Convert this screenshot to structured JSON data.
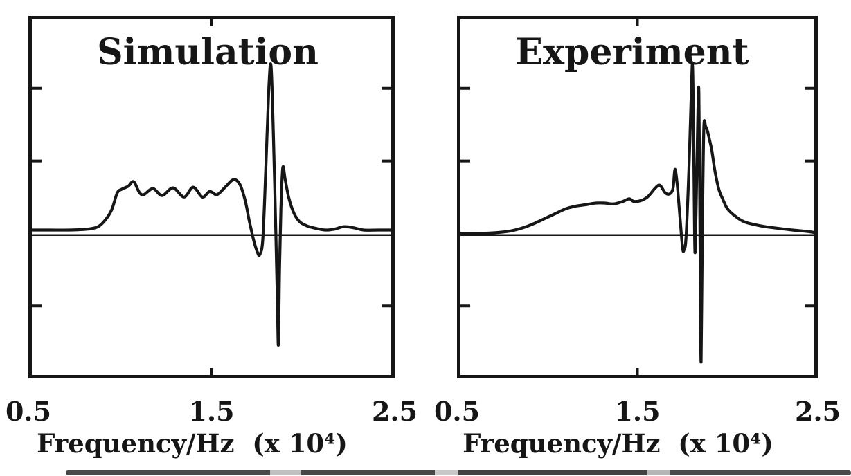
{
  "figure": {
    "background_color": "#ffffff",
    "ink_color": "#161616"
  },
  "chart_data": [
    {
      "type": "line",
      "title": "Simulation",
      "xlabel": "Frequency/Hz  (x 10⁴)",
      "ylabel": "",
      "xlim": [
        0.5,
        2.5
      ],
      "ylim": [
        -0.85,
        1.3
      ],
      "xtick_values": [
        0.5,
        1.5,
        2.5
      ],
      "xtick_labels": [
        "0.5",
        "1.5",
        "2.5"
      ],
      "ytick_values_unlabeled": [
        0.87,
        0.44,
        -0.42
      ],
      "zero_line_y": 0,
      "grid": false,
      "legend": "none",
      "y_units": "relative amplitude (normalized, tallest peak = 1)",
      "series": [
        {
          "name": "simulation-spectrum",
          "points": [
            [
              0.5,
              0.03
            ],
            [
              0.62,
              0.03
            ],
            [
              0.72,
              0.03
            ],
            [
              0.82,
              0.035
            ],
            [
              0.88,
              0.05
            ],
            [
              0.92,
              0.09
            ],
            [
              0.955,
              0.15
            ],
            [
              0.985,
              0.25
            ],
            [
              1.01,
              0.272
            ],
            [
              1.045,
              0.29
            ],
            [
              1.075,
              0.317
            ],
            [
              1.105,
              0.255
            ],
            [
              1.13,
              0.24
            ],
            [
              1.18,
              0.276
            ],
            [
              1.23,
              0.235
            ],
            [
              1.29,
              0.28
            ],
            [
              1.35,
              0.226
            ],
            [
              1.4,
              0.284
            ],
            [
              1.45,
              0.226
            ],
            [
              1.49,
              0.259
            ],
            [
              1.53,
              0.24
            ],
            [
              1.575,
              0.285
            ],
            [
              1.62,
              0.329
            ],
            [
              1.655,
              0.3
            ],
            [
              1.685,
              0.2
            ],
            [
              1.705,
              0.09
            ],
            [
              1.73,
              -0.03
            ],
            [
              1.75,
              -0.1
            ],
            [
              1.763,
              -0.115
            ],
            [
              1.78,
              -0.02
            ],
            [
              1.797,
              0.42
            ],
            [
              1.813,
              0.88
            ],
            [
              1.825,
              1.0
            ],
            [
              1.838,
              0.58
            ],
            [
              1.851,
              0.02
            ],
            [
              1.859,
              -0.38
            ],
            [
              1.865,
              -0.65
            ],
            [
              1.871,
              -0.22
            ],
            [
              1.879,
              0.16
            ],
            [
              1.889,
              0.4
            ],
            [
              1.902,
              0.33
            ],
            [
              1.922,
              0.22
            ],
            [
              1.95,
              0.13
            ],
            [
              1.98,
              0.08
            ],
            [
              2.02,
              0.055
            ],
            [
              2.07,
              0.04
            ],
            [
              2.12,
              0.03
            ],
            [
              2.17,
              0.035
            ],
            [
              2.22,
              0.05
            ],
            [
              2.27,
              0.045
            ],
            [
              2.33,
              0.03
            ],
            [
              2.41,
              0.03
            ],
            [
              2.5,
              0.03
            ]
          ]
        }
      ]
    },
    {
      "type": "line",
      "title": "Experiment",
      "xlabel": "Frequency/Hz  (x 10⁴)",
      "ylabel": "",
      "xlim": [
        0.5,
        2.5
      ],
      "ylim": [
        -0.85,
        1.3
      ],
      "xtick_values": [
        0.5,
        1.5,
        2.5
      ],
      "xtick_labels": [
        "0.5",
        "1.5",
        "2.5"
      ],
      "ytick_values_unlabeled": [
        0.87,
        0.44,
        -0.42
      ],
      "zero_line_y": 0,
      "grid": false,
      "legend": "none",
      "y_units": "relative amplitude (normalized, tallest peak = 1)",
      "series": [
        {
          "name": "experiment-spectrum",
          "points": [
            [
              0.5,
              0.01
            ],
            [
              0.62,
              0.01
            ],
            [
              0.72,
              0.015
            ],
            [
              0.8,
              0.025
            ],
            [
              0.87,
              0.045
            ],
            [
              0.93,
              0.07
            ],
            [
              0.99,
              0.1
            ],
            [
              1.05,
              0.13
            ],
            [
              1.1,
              0.155
            ],
            [
              1.15,
              0.17
            ],
            [
              1.21,
              0.18
            ],
            [
              1.27,
              0.19
            ],
            [
              1.32,
              0.19
            ],
            [
              1.37,
              0.185
            ],
            [
              1.42,
              0.2
            ],
            [
              1.455,
              0.215
            ],
            [
              1.48,
              0.2
            ],
            [
              1.52,
              0.205
            ],
            [
              1.56,
              0.23
            ],
            [
              1.6,
              0.28
            ],
            [
              1.625,
              0.295
            ],
            [
              1.655,
              0.25
            ],
            [
              1.68,
              0.245
            ],
            [
              1.698,
              0.28
            ],
            [
              1.708,
              0.39
            ],
            [
              1.72,
              0.31
            ],
            [
              1.735,
              0.12
            ],
            [
              1.75,
              -0.07
            ],
            [
              1.758,
              -0.09
            ],
            [
              1.77,
              -0.01
            ],
            [
              1.786,
              0.4
            ],
            [
              1.799,
              0.85
            ],
            [
              1.806,
              1.0
            ],
            [
              1.812,
              0.55
            ],
            [
              1.817,
              0.0
            ],
            [
              1.821,
              -0.08
            ],
            [
              1.828,
              0.3
            ],
            [
              1.836,
              0.75
            ],
            [
              1.841,
              0.84
            ],
            [
              1.846,
              0.2
            ],
            [
              1.85,
              -0.5
            ],
            [
              1.853,
              -0.75
            ],
            [
              1.857,
              -0.35
            ],
            [
              1.863,
              0.3
            ],
            [
              1.869,
              0.655
            ],
            [
              1.878,
              0.645
            ],
            [
              1.889,
              0.615
            ],
            [
              1.901,
              0.56
            ],
            [
              1.913,
              0.5
            ],
            [
              1.93,
              0.38
            ],
            [
              1.952,
              0.27
            ],
            [
              1.975,
              0.21
            ],
            [
              2.0,
              0.155
            ],
            [
              2.045,
              0.11
            ],
            [
              2.09,
              0.08
            ],
            [
              2.15,
              0.062
            ],
            [
              2.21,
              0.05
            ],
            [
              2.28,
              0.04
            ],
            [
              2.36,
              0.03
            ],
            [
              2.44,
              0.022
            ],
            [
              2.5,
              0.012
            ]
          ]
        }
      ]
    }
  ]
}
